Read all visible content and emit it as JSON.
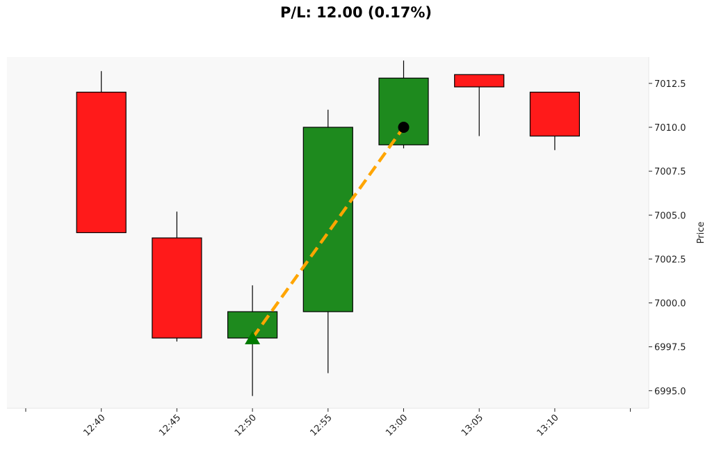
{
  "title": "P/L: 12.00 (0.17%)",
  "colors": {
    "background": "#ffffff",
    "plot_background": "#f8f8f8",
    "up": "#1e8a1e",
    "down": "#ff1a1a",
    "trade_line": "#ffa500",
    "entry_marker": "#007a00",
    "exit_marker": "#000000"
  },
  "chart_data": {
    "type": "candlestick",
    "title": "P/L: 12.00 (0.17%)",
    "xlabel": "",
    "ylabel": "Price",
    "y_axis_side": "right",
    "ylim": [
      6994,
      7014
    ],
    "y_ticks": [
      6995.0,
      6997.5,
      7000.0,
      7002.5,
      7005.0,
      7007.5,
      7010.0,
      7012.5
    ],
    "y_tick_labels": [
      "6995.0",
      "6997.5",
      "7000.0",
      "7002.5",
      "7005.0",
      "7007.5",
      "7010.0",
      "7012.5"
    ],
    "x_tick_labels": [
      "",
      "12:40",
      "12:45",
      "12:50",
      "12:55",
      "13:00",
      "13:05",
      "13:10",
      ""
    ],
    "grid": false,
    "candles": [
      {
        "time": "12:40",
        "open": 7012.0,
        "high": 7013.2,
        "low": 7004.0,
        "close": 7004.0
      },
      {
        "time": "12:45",
        "open": 7003.7,
        "high": 7005.2,
        "low": 6997.8,
        "close": 6998.0
      },
      {
        "time": "12:50",
        "open": 6998.0,
        "high": 7001.0,
        "low": 6994.7,
        "close": 6999.5
      },
      {
        "time": "12:55",
        "open": 6999.5,
        "high": 7011.0,
        "low": 6996.0,
        "close": 7010.0
      },
      {
        "time": "13:00",
        "open": 7009.0,
        "high": 7013.8,
        "low": 7008.8,
        "close": 7012.8
      },
      {
        "time": "13:05",
        "open": 7013.0,
        "high": 7013.0,
        "low": 7009.5,
        "close": 7012.3
      },
      {
        "time": "13:10",
        "open": 7012.0,
        "high": 7012.0,
        "low": 7008.7,
        "close": 7009.5
      }
    ],
    "trade": {
      "entry": {
        "time": "12:50",
        "price": 6998.0,
        "marker": "triangle-up"
      },
      "exit": {
        "time": "13:00",
        "price": 7010.0,
        "marker": "circle"
      },
      "line_style": "dashed"
    }
  }
}
